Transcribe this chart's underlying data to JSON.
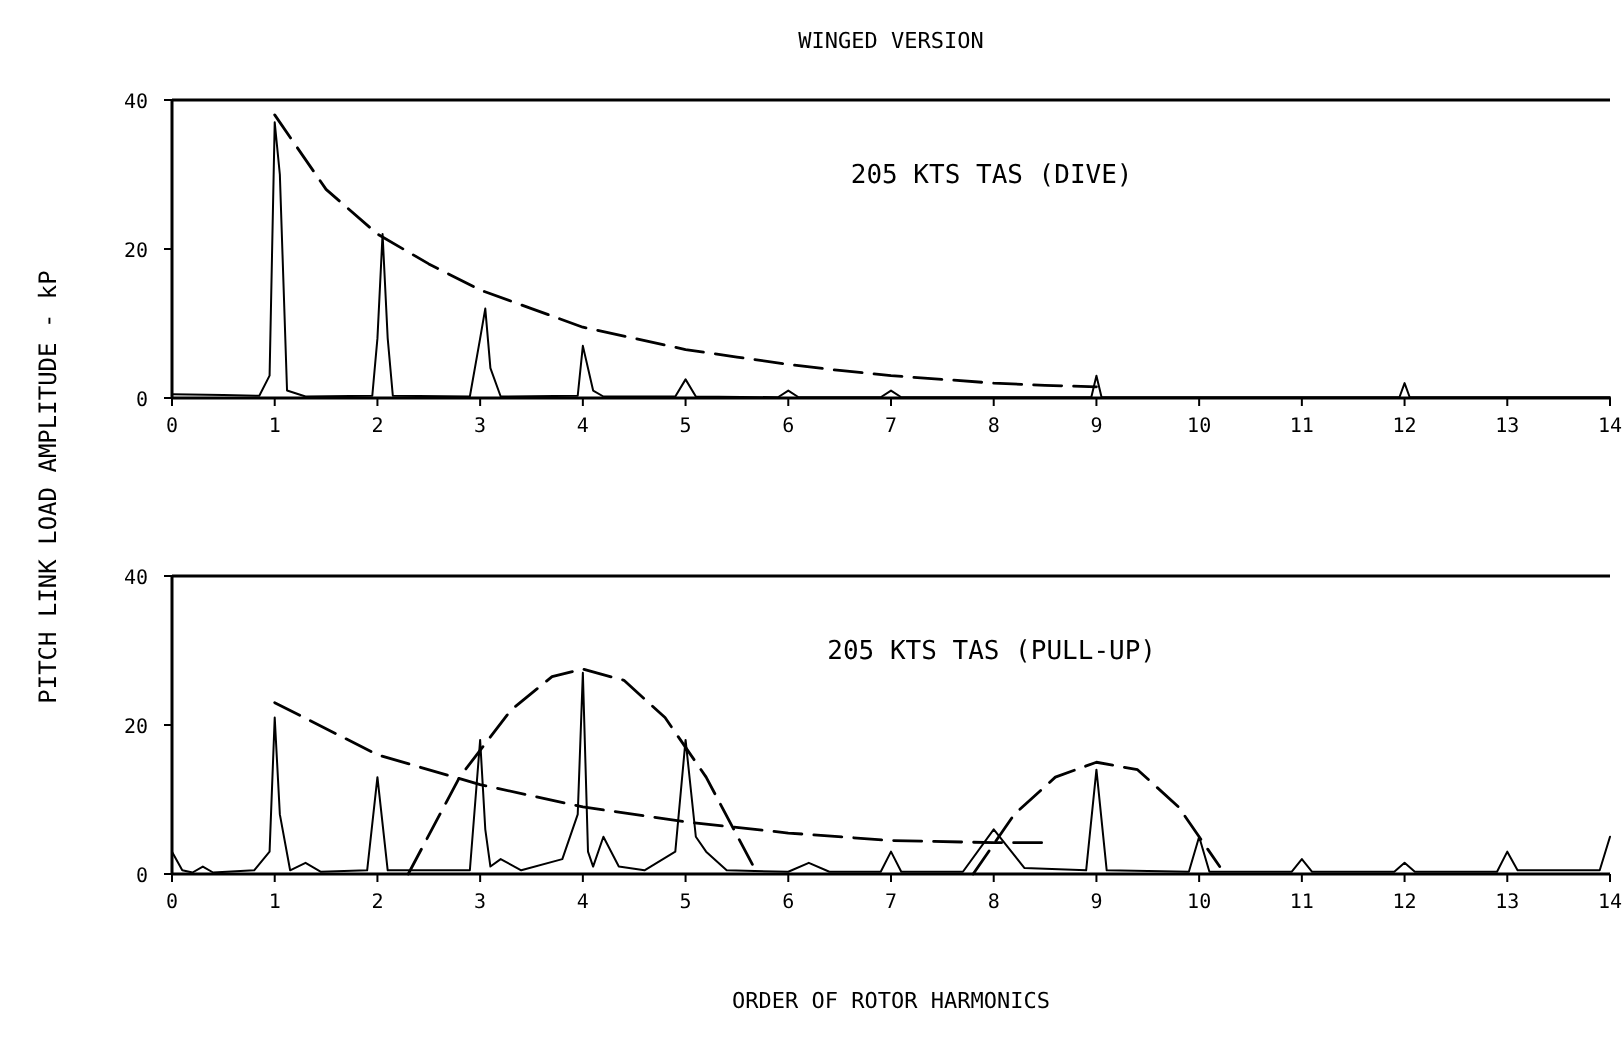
{
  "chart_data": [
    {
      "type": "line",
      "title": "WINGED VERSION",
      "ylabel": "PITCH LINK LOAD AMPLITUDE - kP",
      "annotations": [
        "205 KTS TAS (DIVE)"
      ],
      "xlim": [
        0,
        14
      ],
      "xticks": [
        0,
        1,
        2,
        3,
        4,
        5,
        6,
        7,
        8,
        9,
        10,
        11,
        12,
        13,
        14
      ],
      "ylim": [
        0,
        40
      ],
      "yticks": [
        0,
        20,
        40
      ],
      "grid": false,
      "marker": "none",
      "series": [
        {
          "color": "#000000",
          "line_style": "solid",
          "x": [
            0,
            0.5,
            0.85,
            0.95,
            1.0,
            1.05,
            1.12,
            1.3,
            1.95,
            2.0,
            2.05,
            2.1,
            2.15,
            2.9,
            3.0,
            3.05,
            3.1,
            3.2,
            3.95,
            4.0,
            4.1,
            4.2,
            4.9,
            5.0,
            5.1,
            5.9,
            6.0,
            6.1,
            6.9,
            7.0,
            7.1,
            8.95,
            9.0,
            9.05,
            11.95,
            12.0,
            12.05,
            14
          ],
          "values": [
            0.5,
            0.4,
            0.3,
            3,
            37,
            30,
            1,
            0.2,
            0.3,
            8,
            22,
            8,
            0.3,
            0.2,
            8,
            12,
            4,
            0.2,
            0.3,
            7,
            1,
            0.2,
            0.2,
            2.5,
            0.2,
            0.1,
            1,
            0.1,
            0.1,
            1,
            0.1,
            0.1,
            3,
            0.1,
            0.1,
            2,
            0.1,
            0.1
          ]
        },
        {
          "color": "#000000",
          "line_style": "dashed",
          "x": [
            1,
            1.5,
            2,
            2.5,
            3,
            3.5,
            4,
            4.5,
            5,
            5.5,
            6,
            6.5,
            7,
            7.5,
            8,
            8.5,
            9
          ],
          "values": [
            38,
            28,
            22,
            18,
            14.5,
            12,
            9.5,
            8,
            6.5,
            5.5,
            4.5,
            3.7,
            3,
            2.5,
            2,
            1.7,
            1.5
          ]
        }
      ]
    },
    {
      "type": "line",
      "xlabel": "ORDER OF ROTOR HARMONICS",
      "annotations": [
        "205 KTS TAS (PULL-UP)"
      ],
      "xlim": [
        0,
        14
      ],
      "xticks": [
        0,
        1,
        2,
        3,
        4,
        5,
        6,
        7,
        8,
        9,
        10,
        11,
        12,
        13,
        14
      ],
      "ylim": [
        0,
        40
      ],
      "yticks": [
        0,
        20,
        40
      ],
      "grid": false,
      "marker": "none",
      "series": [
        {
          "color": "#000000",
          "line_style": "solid",
          "x": [
            0,
            0.1,
            0.2,
            0.3,
            0.4,
            0.8,
            0.95,
            1.0,
            1.05,
            1.15,
            1.3,
            1.45,
            1.9,
            2.0,
            2.1,
            2.9,
            3.0,
            3.05,
            3.1,
            3.2,
            3.4,
            3.8,
            3.95,
            4.0,
            4.05,
            4.1,
            4.2,
            4.35,
            4.6,
            4.9,
            5.0,
            5.1,
            5.2,
            5.4,
            6.0,
            6.2,
            6.4,
            6.9,
            7.0,
            7.1,
            7.7,
            8.0,
            8.3,
            8.9,
            9.0,
            9.1,
            9.9,
            10.0,
            10.1,
            10.9,
            11.0,
            11.1,
            11.9,
            12.0,
            12.1,
            12.9,
            13.0,
            13.1,
            13.9,
            14.0
          ],
          "values": [
            3,
            0.5,
            0.2,
            1,
            0.2,
            0.5,
            3,
            21,
            8,
            0.5,
            1.5,
            0.3,
            0.5,
            13,
            0.5,
            0.5,
            18,
            6,
            1,
            2,
            0.5,
            2,
            8,
            27,
            3,
            1,
            5,
            1,
            0.5,
            3,
            18,
            5,
            3,
            0.5,
            0.3,
            1.5,
            0.3,
            0.3,
            3,
            0.3,
            0.3,
            6,
            0.8,
            0.5,
            14,
            0.5,
            0.3,
            5,
            0.3,
            0.3,
            2,
            0.3,
            0.3,
            1.5,
            0.3,
            0.3,
            3,
            0.5,
            0.5,
            5
          ]
        },
        {
          "color": "#000000",
          "line_style": "dashed",
          "x": [
            1,
            2,
            3,
            4,
            5,
            6,
            7,
            8,
            8.5
          ],
          "values": [
            23,
            16,
            12,
            9,
            7,
            5.5,
            4.5,
            4.2,
            4.2
          ]
        },
        {
          "color": "#000000",
          "line_style": "dashed",
          "x": [
            2.3,
            2.8,
            3.3,
            3.7,
            4,
            4.4,
            4.8,
            5.2,
            5.7
          ],
          "values": [
            0,
            13,
            22,
            26.5,
            27.5,
            26,
            21,
            13,
            0
          ]
        },
        {
          "color": "#000000",
          "line_style": "dashed",
          "x": [
            7.8,
            8.2,
            8.6,
            9,
            9.4,
            9.8,
            10.2
          ],
          "values": [
            0,
            8,
            13,
            15,
            14,
            9,
            1
          ]
        }
      ]
    }
  ]
}
